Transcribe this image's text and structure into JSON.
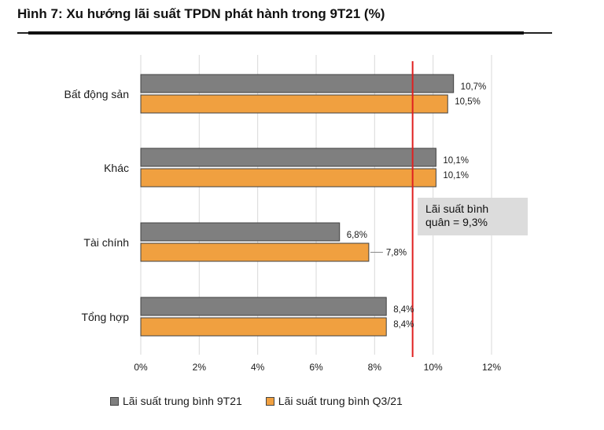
{
  "title": "Hình 7: Xu hướng lãi suất TPDN phát hành trong 9T21 (%)",
  "chart_data": {
    "type": "bar",
    "orientation": "horizontal",
    "categories": [
      "Bất động sản",
      "Khác",
      "Tài chính",
      "Tổng hợp"
    ],
    "series": [
      {
        "name": "Lãi suất trung bình 9T21",
        "color": "#7f7f7f",
        "values": [
          10.7,
          10.1,
          6.8,
          8.4
        ],
        "labels": [
          "10,7%",
          "10,1%",
          "6,8%",
          "8,4%"
        ]
      },
      {
        "name": "Lãi suất trung bình Q3/21",
        "color": "#f0a040",
        "values": [
          10.5,
          10.1,
          7.8,
          8.4
        ],
        "labels": [
          "10,5%",
          "10,1%",
          "7,8%",
          "8,4%"
        ]
      }
    ],
    "xlim": [
      0,
      12
    ],
    "xticks": [
      0,
      2,
      4,
      6,
      8,
      10,
      12
    ],
    "xtick_labels": [
      "0%",
      "2%",
      "4%",
      "6%",
      "8%",
      "10%",
      "12%"
    ],
    "grid": "vertical",
    "legend_position": "bottom",
    "reference_line": {
      "value": 9.3,
      "color": "#e02020",
      "label_lines": [
        "Lãi suất bình",
        "quân = 9,3%"
      ]
    }
  }
}
